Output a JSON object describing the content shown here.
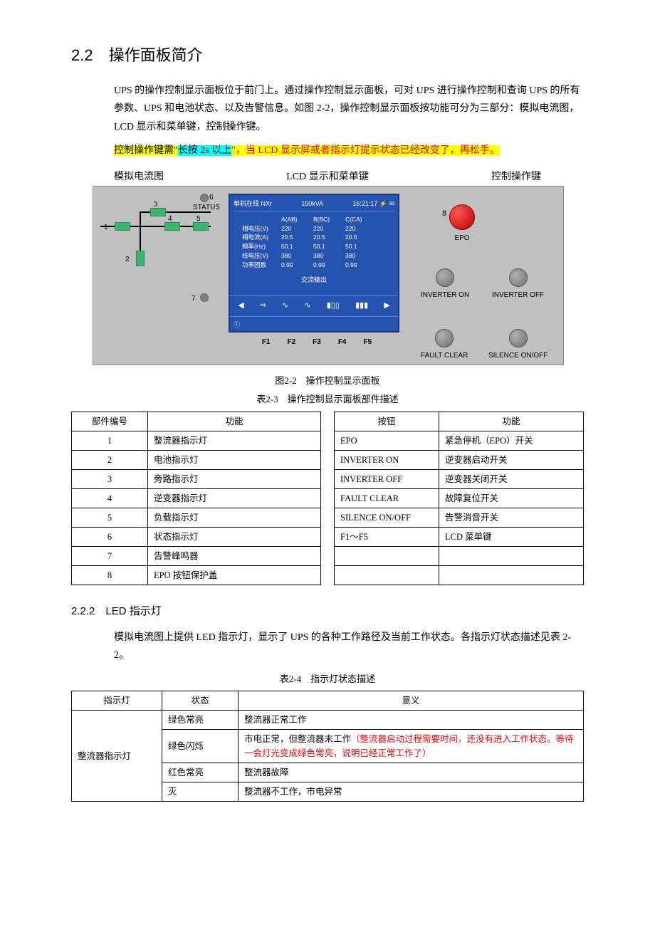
{
  "heading": {
    "num": "2.2",
    "title": "操作面板简介"
  },
  "intro": "UPS 的操作控制显示面板位于前门上。通过操作控制显示面板，可对 UPS 进行操作控制和查询 UPS 的所有参数、UPS 和电池状态、以及告警信息。如图 2-2，操作控制显示面板按功能可分为三部分：模拟电流图，LCD 显示和菜单键，控制操作键。",
  "highlight": {
    "p1": "控制操作键需\"",
    "p2": "长按 2s 以上",
    "p3": "\"，当 LCD 显示屏或者指示灯提示状态已经改变了，再松手。"
  },
  "panel_labels": {
    "left": "模拟电流图",
    "mid": "LCD 显示和菜单键",
    "right": "控制操作键"
  },
  "mimic": {
    "status_label": "STATUS",
    "nums": {
      "n1": "1",
      "n2": "2",
      "n3": "3",
      "n4": "4",
      "n5": "5",
      "n6": "6",
      "n7": "7",
      "n8": "8"
    }
  },
  "lcd": {
    "header_left": "单机在线  NXr",
    "header_mid": "150kVA",
    "header_right": "16:21:17 ⚡ ✉",
    "col_headers": [
      "A(AB)",
      "B(BC)",
      "C(CA)"
    ],
    "rows": [
      {
        "label": "相电压(V)",
        "vals": [
          "220",
          "220",
          "220"
        ]
      },
      {
        "label": "相电流(A)",
        "vals": [
          "20.5",
          "20.5",
          "20.5"
        ]
      },
      {
        "label": "频率(Hz)",
        "vals": [
          "50.1",
          "50.1",
          "50.1"
        ]
      },
      {
        "label": "线电压(V)",
        "vals": [
          "380",
          "380",
          "380"
        ]
      },
      {
        "label": "功率因数",
        "vals": [
          "0.99",
          "0.99",
          "0.99"
        ]
      }
    ],
    "title": "交流输出",
    "icons": [
      "◀",
      "⇒",
      "∿",
      "∿",
      "▮▯▯",
      "▮▮▮",
      "▶"
    ],
    "info_icon": "ⓘ"
  },
  "fkeys": [
    "F1",
    "F2",
    "F3",
    "F4",
    "F5"
  ],
  "controls": {
    "epo": "EPO",
    "inv_on": "INVERTER ON",
    "inv_off": "INVERTER OFF",
    "fault_clear": "FAULT CLEAR",
    "silence": "SILENCE ON/OFF"
  },
  "fig_caption": "图2-2　操作控制显示面板",
  "table23_caption": "表2-3　操作控制显示面板部件描述",
  "table23": {
    "headers_a": [
      "部件编号",
      "功能"
    ],
    "headers_b": [
      "按钮",
      "功能"
    ],
    "rows_a": [
      [
        "1",
        "整流器指示灯"
      ],
      [
        "2",
        "电池指示灯"
      ],
      [
        "3",
        "旁路指示灯"
      ],
      [
        "4",
        "逆变器指示灯"
      ],
      [
        "5",
        "负载指示灯"
      ],
      [
        "6",
        "状态指示灯"
      ],
      [
        "7",
        "告警峰鸣器"
      ],
      [
        "8",
        "EPO 按钮保护盖"
      ]
    ],
    "rows_b": [
      [
        "EPO",
        "紧急停机（EPO）开关"
      ],
      [
        "INVERTER ON",
        "逆变器启动开关"
      ],
      [
        "INVERTER OFF",
        "逆变器关闭开关"
      ],
      [
        "FAULT CLEAR",
        "故障复位开关"
      ],
      [
        "SILENCE ON/OFF",
        "告警消音开关"
      ],
      [
        "F1～F5",
        "LCD 菜单键"
      ],
      [
        "",
        ""
      ],
      [
        "",
        ""
      ]
    ]
  },
  "sub": {
    "num": "2.2.2",
    "title": "LED 指示灯"
  },
  "sub_body": "模拟电流图上提供 LED 指示灯，显示了 UPS 的各种工作路径及当前工作状态。各指示灯状态描述见表 2-2。",
  "table24_caption": "表2-4　指示灯状态描述",
  "table24": {
    "headers": [
      "指示灯",
      "状态",
      "意义"
    ],
    "indicator": "整流器指示灯",
    "rows": [
      {
        "state": "绿色常亮",
        "meaning": "整流器正常工作",
        "note": ""
      },
      {
        "state": "绿色闪烁",
        "meaning": "市电正常，但整流器末工作",
        "note": "（整流器启动过程需要时间，还没有进入工作状态。等待一会灯光变成绿色常亮，说明已经正常工作了）"
      },
      {
        "state": "红色常亮",
        "meaning": "整流器故障",
        "note": ""
      },
      {
        "state": "灭",
        "meaning": "整流器不工作，市电异常",
        "note": ""
      }
    ]
  }
}
